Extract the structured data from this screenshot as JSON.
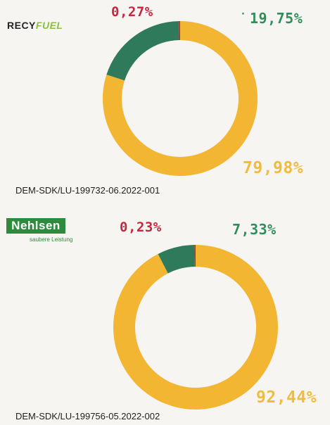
{
  "chart_data": [
    {
      "type": "pie",
      "donut": true,
      "logo_text": [
        "RECY",
        "FUEL"
      ],
      "slices": [
        {
          "label": "0,27%",
          "value": 0.27,
          "color": "#c5273f"
        },
        {
          "label": "19,75%",
          "value": 19.75,
          "color": "#2f7a5a"
        },
        {
          "label": "79,98%",
          "value": 79.98,
          "color": "#f2b632"
        }
      ],
      "caption": "DEM-SDK/LU-199732-06.2022-001"
    },
    {
      "type": "pie",
      "donut": true,
      "logo_text": "Nehlsen",
      "logo_subtext": "saubere Leistung",
      "slices": [
        {
          "label": "0,23%",
          "value": 0.23,
          "color": "#c5273f"
        },
        {
          "label": "7,33%",
          "value": 7.33,
          "color": "#2f7a5a"
        },
        {
          "label": "92,44%",
          "value": 92.44,
          "color": "#f2b632"
        }
      ],
      "caption": "DEM-SDK/LU-199756-05.2022-002"
    }
  ]
}
